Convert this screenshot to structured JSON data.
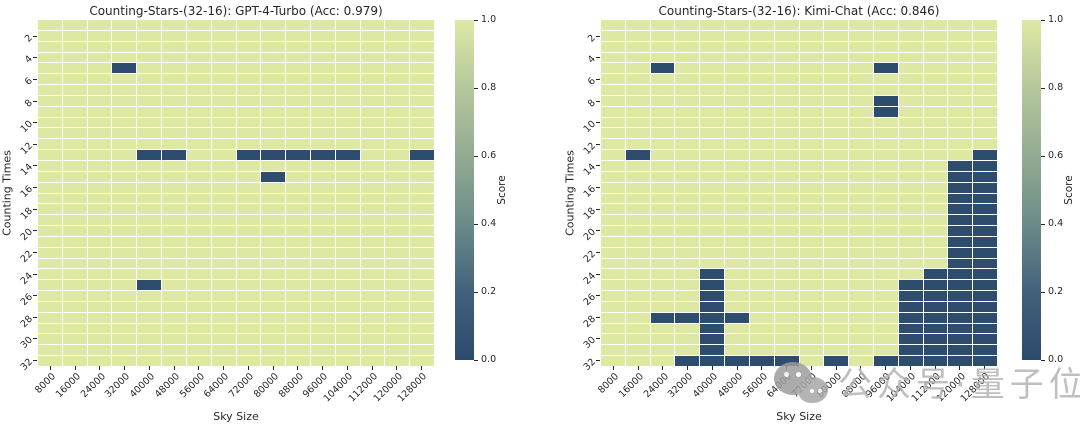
{
  "palette": {
    "cell_high": "#dde9a3",
    "cell_low": "#2e4c6d",
    "gridline": "#ffffff",
    "text": "#262626",
    "watermark_gray": "#b4b4b4",
    "colorbar_gradient": [
      "#dde9a4",
      "#b5c79c",
      "#93ab92",
      "#6b8c88",
      "#41617c",
      "#2c4a6c"
    ]
  },
  "watermark": {
    "text": "公众号·量子位"
  },
  "chart_data": [
    {
      "type": "heatmap",
      "title": "Counting-Stars-(32-16): GPT-4-Turbo (Acc: 0.979)",
      "model": "GPT-4-Turbo",
      "accuracy": "0.979",
      "xlabel": "Sky Size",
      "ylabel": "Counting Times",
      "colorbar_label": "Score",
      "colorbar_ticks": [
        "1.0",
        "0.8",
        "0.6",
        "0.4",
        "0.2",
        "0.0"
      ],
      "score_range": [
        0.0,
        1.0
      ],
      "x_ticks": [
        8000,
        16000,
        24000,
        32000,
        40000,
        48000,
        56000,
        64000,
        72000,
        80000,
        88000,
        96000,
        104000,
        112000,
        120000,
        128000
      ],
      "y_ticks": [
        2,
        4,
        6,
        8,
        10,
        12,
        14,
        16,
        18,
        20,
        22,
        24,
        26,
        28,
        30,
        32
      ],
      "y_range": [
        1,
        32
      ],
      "default_score": 1.0,
      "zero_score_cells": [
        [
          5,
          32000
        ],
        [
          13,
          40000
        ],
        [
          13,
          48000
        ],
        [
          13,
          72000
        ],
        [
          13,
          80000
        ],
        [
          13,
          88000
        ],
        [
          13,
          96000
        ],
        [
          13,
          104000
        ],
        [
          13,
          128000
        ],
        [
          15,
          80000
        ],
        [
          25,
          40000
        ]
      ]
    },
    {
      "type": "heatmap",
      "title": "Counting-Stars-(32-16): Kimi-Chat (Acc: 0.846)",
      "model": "Kimi-Chat",
      "accuracy": "0.846",
      "xlabel": "Sky Size",
      "ylabel": "Counting Times",
      "colorbar_label": "Score",
      "colorbar_ticks": [
        "1.0",
        "0.8",
        "0.6",
        "0.4",
        "0.2",
        "0.0"
      ],
      "score_range": [
        0.0,
        1.0
      ],
      "x_ticks": [
        8000,
        16000,
        24000,
        32000,
        40000,
        48000,
        56000,
        64000,
        72000,
        80000,
        88000,
        96000,
        104000,
        112000,
        120000,
        128000
      ],
      "y_ticks": [
        2,
        4,
        6,
        8,
        10,
        12,
        14,
        16,
        18,
        20,
        22,
        24,
        26,
        28,
        30,
        32
      ],
      "y_range": [
        1,
        32
      ],
      "default_score": 1.0,
      "zero_score_cells": [
        [
          5,
          24000
        ],
        [
          5,
          96000
        ],
        [
          8,
          96000
        ],
        [
          9,
          96000
        ],
        [
          13,
          16000
        ],
        [
          13,
          128000
        ],
        [
          14,
          120000
        ],
        [
          14,
          128000
        ],
        [
          15,
          120000
        ],
        [
          15,
          128000
        ],
        [
          16,
          120000
        ],
        [
          16,
          128000
        ],
        [
          17,
          120000
        ],
        [
          17,
          128000
        ],
        [
          18,
          120000
        ],
        [
          18,
          128000
        ],
        [
          19,
          120000
        ],
        [
          19,
          128000
        ],
        [
          20,
          120000
        ],
        [
          20,
          128000
        ],
        [
          21,
          120000
        ],
        [
          21,
          128000
        ],
        [
          22,
          120000
        ],
        [
          22,
          128000
        ],
        [
          23,
          120000
        ],
        [
          23,
          128000
        ],
        [
          24,
          40000
        ],
        [
          24,
          112000
        ],
        [
          24,
          120000
        ],
        [
          24,
          128000
        ],
        [
          25,
          40000
        ],
        [
          25,
          104000
        ],
        [
          25,
          112000
        ],
        [
          25,
          120000
        ],
        [
          25,
          128000
        ],
        [
          26,
          40000
        ],
        [
          26,
          104000
        ],
        [
          26,
          112000
        ],
        [
          26,
          120000
        ],
        [
          26,
          128000
        ],
        [
          27,
          40000
        ],
        [
          27,
          104000
        ],
        [
          27,
          112000
        ],
        [
          27,
          120000
        ],
        [
          27,
          128000
        ],
        [
          28,
          24000
        ],
        [
          28,
          32000
        ],
        [
          28,
          40000
        ],
        [
          28,
          48000
        ],
        [
          28,
          104000
        ],
        [
          28,
          112000
        ],
        [
          28,
          120000
        ],
        [
          28,
          128000
        ],
        [
          29,
          40000
        ],
        [
          29,
          104000
        ],
        [
          29,
          112000
        ],
        [
          29,
          120000
        ],
        [
          29,
          128000
        ],
        [
          30,
          40000
        ],
        [
          30,
          104000
        ],
        [
          30,
          112000
        ],
        [
          30,
          120000
        ],
        [
          30,
          128000
        ],
        [
          31,
          40000
        ],
        [
          31,
          104000
        ],
        [
          31,
          112000
        ],
        [
          31,
          120000
        ],
        [
          31,
          128000
        ],
        [
          32,
          32000
        ],
        [
          32,
          40000
        ],
        [
          32,
          48000
        ],
        [
          32,
          56000
        ],
        [
          32,
          64000
        ],
        [
          32,
          80000
        ],
        [
          32,
          96000
        ],
        [
          32,
          104000
        ],
        [
          32,
          112000
        ],
        [
          32,
          120000
        ],
        [
          32,
          128000
        ]
      ]
    }
  ]
}
